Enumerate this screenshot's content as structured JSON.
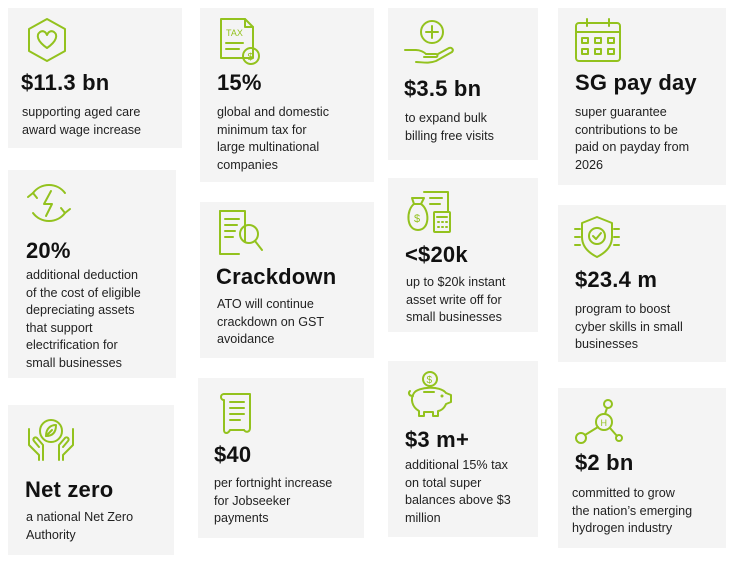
{
  "cards": [
    {
      "headline": "$11.3 bn",
      "text": "supporting aged care\naward wage increase",
      "icon": "heart-hexagon-icon"
    },
    {
      "headline": "15%",
      "text": "global and domestic\nminimum tax for\nlarge multinational\ncompanies",
      "icon": "tax-document-icon",
      "icon_text": "TAX"
    },
    {
      "headline": "$3.5 bn",
      "text": "to expand bulk\nbilling free visits",
      "icon": "medical-hand-icon"
    },
    {
      "headline": "SG pay day",
      "text": "super guarantee\ncontributions to be\npaid on payday from\n2026",
      "icon": "calendar-icon"
    },
    {
      "headline": "20%",
      "text": "additional deduction\nof the cost of eligible\ndepreciating assets\nthat support\nelectrification for\nsmall businesses",
      "icon": "electric-plug-cycle-icon"
    },
    {
      "headline": "Crackdown",
      "text": "ATO will continue\ncrackdown on GST\navoidance",
      "icon": "document-magnifier-icon"
    },
    {
      "headline": "<$20k",
      "text": "up to $20k instant\nasset write off for\nsmall businesses",
      "icon": "money-bag-receipt-icon"
    },
    {
      "headline": "$23.4 m",
      "text": "program to boost\ncyber skills in small\nbusinesses",
      "icon": "shield-check-icon"
    },
    {
      "headline": "Net zero",
      "text": "a national Net Zero\nAuthority",
      "icon": "leaf-hands-icon"
    },
    {
      "headline": "$40",
      "text": "per fortnight increase\nfor Jobseeker\npayments",
      "icon": "scroll-document-icon"
    },
    {
      "headline": "$3 m+",
      "text": "additional 15% tax\non total super\nbalances above $3\nmillion",
      "icon": "piggy-bank-icon"
    },
    {
      "headline": "$2 bn",
      "text": "committed to grow\nthe nation’s emerging\nhydrogen industry",
      "icon": "hydrogen-molecule-icon"
    }
  ],
  "colors": {
    "accent": "#93c21e",
    "card_background": "#f4f4f4",
    "text": "#1f1f1f"
  }
}
